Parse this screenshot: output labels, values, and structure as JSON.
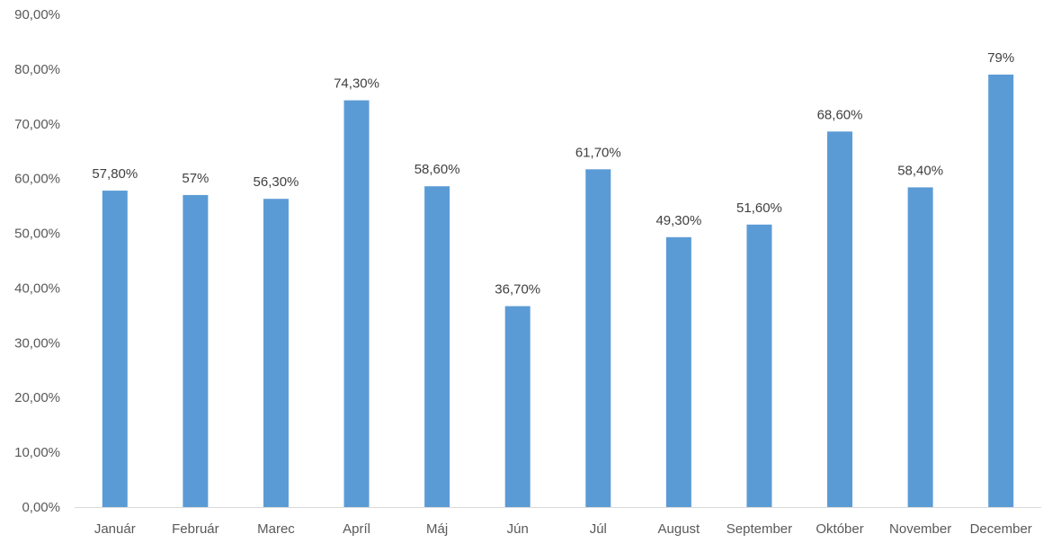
{
  "chart_data": {
    "type": "bar",
    "categories": [
      "Január",
      "Február",
      "Marec",
      "Apríl",
      "Máj",
      "Jún",
      "Júl",
      "August",
      "September",
      "Október",
      "November",
      "December"
    ],
    "values": [
      57.8,
      57,
      56.3,
      74.3,
      58.6,
      36.7,
      61.7,
      49.3,
      51.6,
      68.6,
      58.4,
      79
    ],
    "data_labels": [
      "57,80%",
      "57%",
      "56,30%",
      "74,30%",
      "58,60%",
      "36,70%",
      "61,70%",
      "49,30%",
      "51,60%",
      "68,60%",
      "58,40%",
      "79%"
    ],
    "y_ticks": [
      0,
      10,
      20,
      30,
      40,
      50,
      60,
      70,
      80,
      90
    ],
    "y_tick_labels": [
      "0,00%",
      "10,00%",
      "20,00%",
      "30,00%",
      "40,00%",
      "50,00%",
      "60,00%",
      "70,00%",
      "80,00%",
      "90,00%"
    ],
    "ylim": [
      0,
      90
    ],
    "title": "",
    "xlabel": "",
    "ylabel": "",
    "grid": false,
    "legend": "none",
    "bar_color": "#5B9BD5",
    "axis_color": "#D9D9D9"
  }
}
